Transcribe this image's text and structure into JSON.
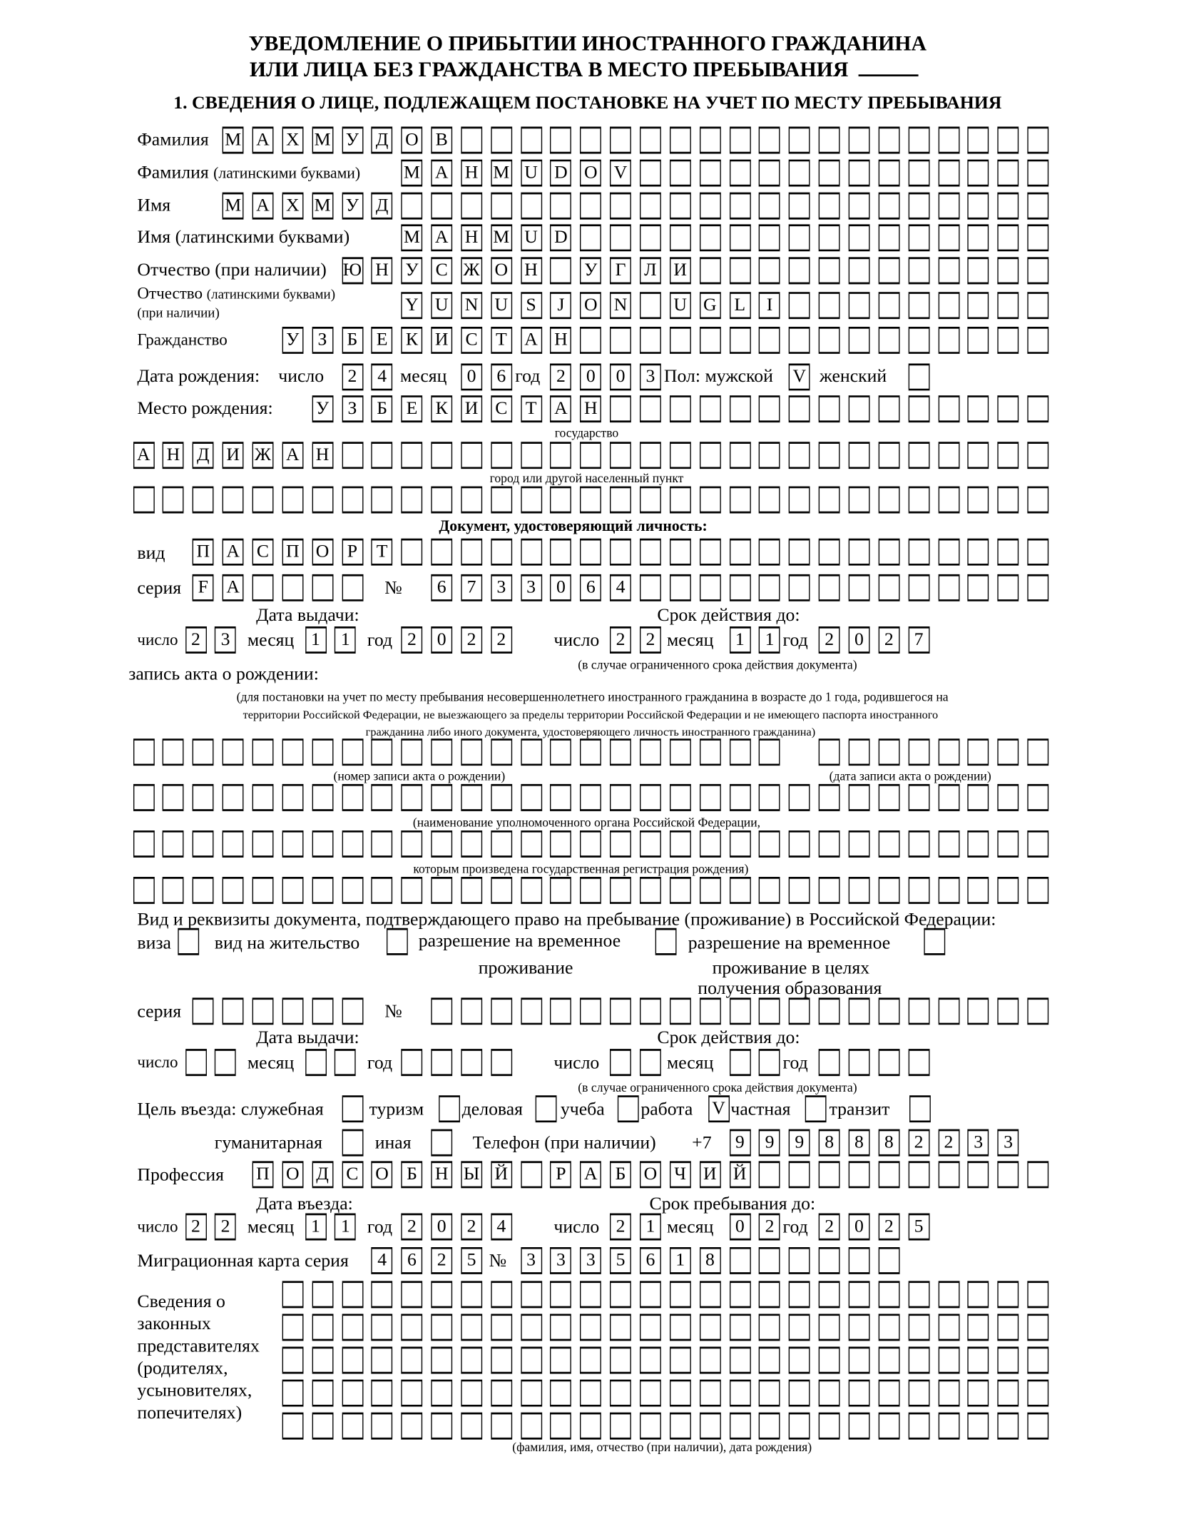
{
  "title": {
    "line1": "УВЕДОМЛЕНИЕ О ПРИБЫТИИ ИНОСТРАННОГО ГРАЖДАНИНА",
    "line2": "ИЛИ ЛИЦА БЕЗ ГРАЖДАНСТВА В МЕСТО ПРЕБЫВАНИЯ"
  },
  "section1": {
    "heading": "1. СВЕДЕНИЯ О ЛИЦЕ, ПОДЛЕЖАЩЕМ ПОСТАНОВКЕ НА УЧЕТ ПО МЕСТУ ПРЕБЫВАНИЯ",
    "surname": {
      "label": "Фамилия",
      "value": "МАХМУДОВ"
    },
    "surname_latin": {
      "label": "Фамилия",
      "label_note": "(латинскими буквами)",
      "value": "MAHMUDOV"
    },
    "name": {
      "label": "Имя",
      "value": "МАХМУД"
    },
    "name_latin": {
      "label": "Имя (латинскими буквами)",
      "value": "MAHMUD"
    },
    "patronymic": {
      "label": "Отчество (при наличии)",
      "value": "ЮНУСЖОН УГЛИ"
    },
    "patronymic_latin": {
      "label": "Отчество",
      "label_note": "(латинскими буквами)",
      "label_note2": "(при наличии)",
      "value": "YUNUSJON UGLI"
    },
    "citizenship": {
      "label": "Гражданство",
      "value": "УЗБЕКИСТАН"
    },
    "birth_date": {
      "label": "Дата рождения:",
      "day_label": "число",
      "day": "24",
      "month_label": "месяц",
      "month": "06",
      "year_label": "год",
      "year": "2003"
    },
    "sex": {
      "label": "Пол: мужской",
      "male": "V",
      "female_label": "женский",
      "female": ""
    },
    "birth_place": {
      "label": "Место рождения:",
      "country": "УЗБЕКИСТАН",
      "country_note": "государство",
      "city": "АНДИЖАН",
      "city_note": "город или другой населенный пункт",
      "extra": ""
    },
    "id_document": {
      "heading": "Документ, удостоверяющий личность:",
      "type_label": "вид",
      "type": "ПАСПОРТ",
      "series_label": "серия",
      "series": "FA",
      "number_label": "№",
      "number": "6733064",
      "issue_heading": "Дата выдачи:",
      "valid_heading": "Срок действия до:",
      "day_label": "число",
      "month_label": "месяц",
      "year_label": "год",
      "issue": {
        "day": "23",
        "month": "11",
        "year": "2022"
      },
      "valid": {
        "day": "22",
        "month": "11",
        "year": "2027"
      },
      "valid_note": "(в случае ограниченного срока действия документа)"
    },
    "birth_record": {
      "label": "запись акта о рождении:",
      "note_lines": [
        "(для постановки на учет по месту пребывания несовершеннолетнего иностранного гражданина в возрасте до 1 года, родившегося на",
        "территории Российской Федерации, не выезжающего за пределы территории Российской Федерации и не имеющего паспорта иностранного",
        "гражданина либо иного документа, удостоверяющего личность иностранного гражданина)"
      ],
      "number_note": "(номер записи акта о рождении)",
      "date_note": "(дата записи акта о рождении)",
      "authority_note1": "(наименование уполномоченного органа Российской Федерации,",
      "authority_note2": "которым произведена государственная регистрация рождения)"
    },
    "stay_document": {
      "heading": "Вид и реквизиты документа, подтверждающего право на пребывание (проживание) в Российской Федерации:",
      "visa": "виза",
      "residence": "вид на жительство",
      "temp": "разрешение на временное",
      "temp2": "проживание",
      "temp_edu": "разрешение на временное",
      "temp_edu2": "проживание в целях",
      "temp_edu3": "получения образования",
      "series_label": "серия",
      "number_label": "№",
      "issue_heading": "Дата выдачи:",
      "valid_heading": "Срок действия до:",
      "day_label": "число",
      "month_label": "месяц",
      "year_label": "год",
      "valid_note": "(в случае ограниченного срока действия документа)"
    },
    "purpose": {
      "label": "Цель въезда: служебная",
      "tourism": "туризм",
      "business": "деловая",
      "study": "учеба",
      "work": "работа",
      "work_mark": "V",
      "private": "частная",
      "transit": "транзит",
      "humanitarian": "гуманитарная",
      "other": "иная"
    },
    "phone": {
      "label": "Телефон (при наличии)",
      "prefix": "+7",
      "value": "9998882233"
    },
    "profession": {
      "label": "Профессия",
      "value": "ПОДСОБНЫЙ РАБОЧИЙ"
    },
    "entry": {
      "entry_heading": "Дата въезда:",
      "stay_heading": "Срок пребывания до:",
      "day_label": "число",
      "month_label": "месяц",
      "year_label": "год",
      "entry": {
        "day": "22",
        "month": "11",
        "year": "2024"
      },
      "stay_until": {
        "day": "21",
        "month": "02",
        "year": "2025"
      }
    },
    "migration_card": {
      "label": "Миграционная карта серия",
      "series": "4625",
      "number_label": "№",
      "number": "3335618"
    },
    "representatives": {
      "label_lines": [
        "Сведения о",
        "законных",
        "представителях",
        "(родителях,",
        "усыновителях,",
        "попечителях)"
      ],
      "note": "(фамилия, имя, отчество (при наличии), дата рождения)"
    }
  }
}
